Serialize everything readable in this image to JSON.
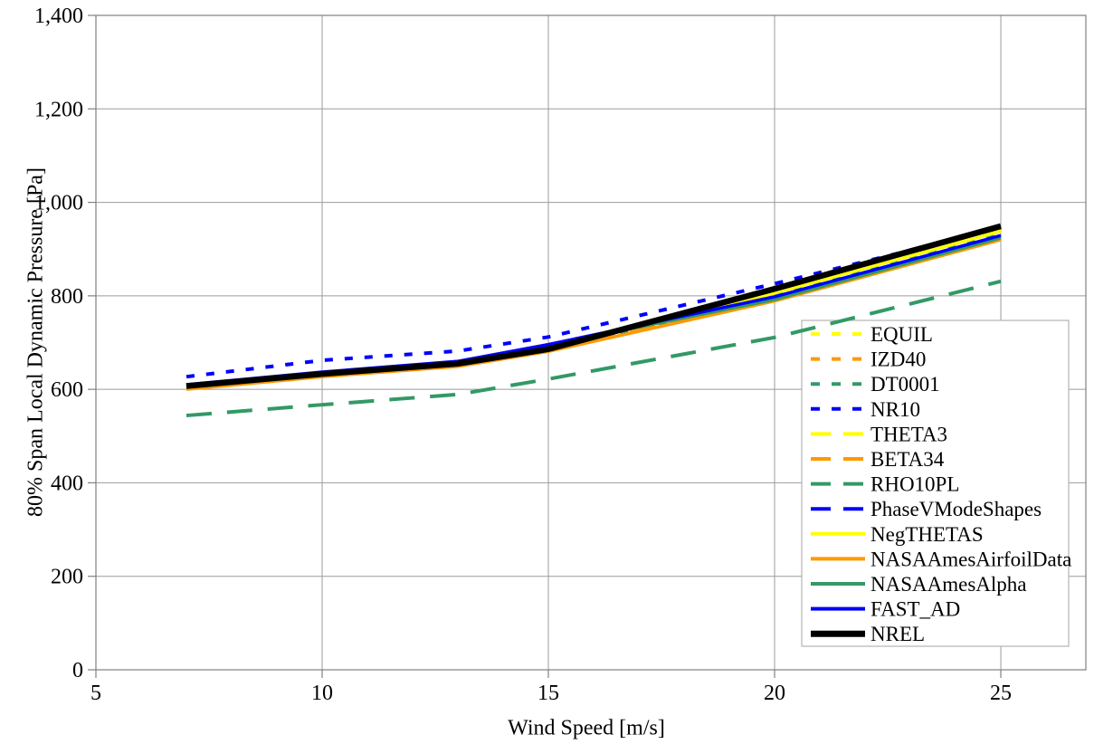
{
  "chart_data": {
    "type": "line",
    "title": "",
    "xlabel": "Wind Speed [m/s]",
    "ylabel": "80% Span Local Dynamic Pressure [Pa]",
    "xlim": [
      5,
      26.9
    ],
    "ylim": [
      0,
      1400
    ],
    "x_ticks": [
      5,
      10,
      15,
      20,
      25
    ],
    "x_tick_labels": [
      "5",
      "10",
      "15",
      "20",
      "25"
    ],
    "y_ticks": [
      0,
      200,
      400,
      600,
      800,
      1000,
      1200,
      1400
    ],
    "y_tick_labels": [
      "0",
      "200",
      "400",
      "600",
      "800",
      "1,000",
      "1,200",
      "1,400"
    ],
    "grid": true,
    "legend_position": "inside-right",
    "x": [
      7,
      10,
      13,
      15,
      20,
      25
    ],
    "series": [
      {
        "name": "EQUIL",
        "color": "#FFFF00",
        "style": "dotted",
        "values": [
          605,
          632,
          654,
          686,
          806,
          937
        ]
      },
      {
        "name": "IZD40",
        "color": "#FF9900",
        "style": "dotted",
        "values": [
          602,
          629,
          651,
          683,
          795,
          926
        ]
      },
      {
        "name": "DT0001",
        "color": "#339966",
        "style": "dotted",
        "values": [
          604,
          631,
          653,
          685,
          800,
          931
        ]
      },
      {
        "name": "NR10",
        "color": "#0000FF",
        "style": "dotted",
        "values": [
          627,
          662,
          682,
          712,
          826,
          945
        ]
      },
      {
        "name": "THETA3",
        "color": "#FFFF00",
        "style": "dashed",
        "values": [
          606,
          633,
          655,
          687,
          807,
          939
        ]
      },
      {
        "name": "BETA34",
        "color": "#FF9900",
        "style": "dashed",
        "values": [
          601,
          628,
          650,
          682,
          791,
          922
        ]
      },
      {
        "name": "RHO10PL",
        "color": "#339966",
        "style": "dashed",
        "values": [
          544,
          567,
          589,
          622,
          711,
          831
        ]
      },
      {
        "name": "PhaseVModeShapes",
        "color": "#0000FF",
        "style": "dashed",
        "values": [
          606,
          633,
          655,
          686,
          813,
          947
        ]
      },
      {
        "name": "NegTHETAS",
        "color": "#FFFF00",
        "style": "solid",
        "values": [
          605,
          633,
          655,
          687,
          806,
          938
        ]
      },
      {
        "name": "NASAAmesAirfoilData",
        "color": "#FF9900",
        "style": "solid",
        "values": [
          600,
          627,
          649,
          681,
          789,
          920
        ]
      },
      {
        "name": "NASAAmesAlpha",
        "color": "#339966",
        "style": "solid",
        "values": [
          606,
          634,
          657,
          694,
          792,
          924
        ]
      },
      {
        "name": "FAST_AD",
        "color": "#0000FF",
        "style": "solid",
        "values": [
          610,
          637,
          660,
          696,
          798,
          929
        ]
      },
      {
        "name": "NREL",
        "color": "#000000",
        "style": "solid",
        "values": [
          607,
          633,
          655,
          686,
          815,
          949
        ]
      }
    ]
  },
  "styles": {
    "background": "#FFFFFF",
    "grid_color": "#9b9b9b",
    "axis_color": "#808080",
    "legend_border": "#b3b3b3",
    "text_color": "#000000"
  }
}
